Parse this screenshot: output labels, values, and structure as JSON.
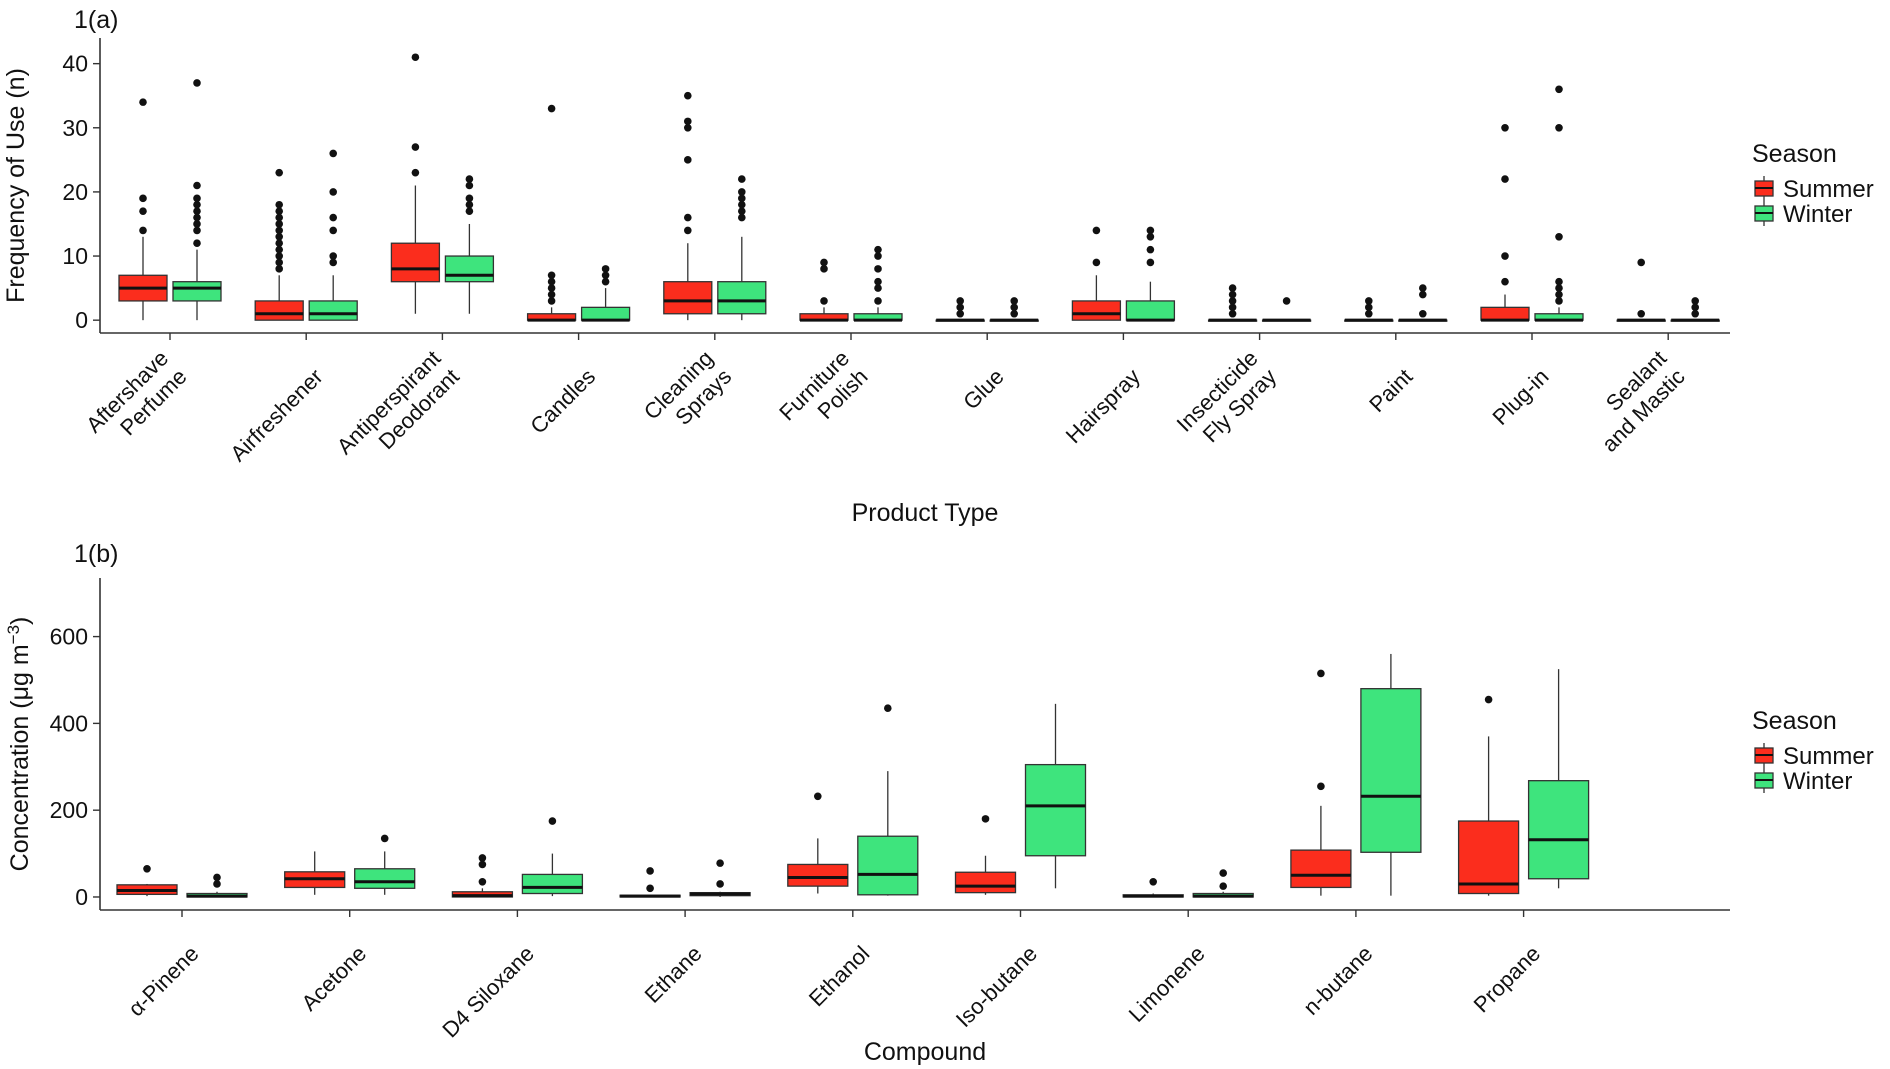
{
  "colors": {
    "summer": "#fb2d1d",
    "winter": "#3ee47d"
  },
  "chart_data": [
    {
      "type": "boxplot",
      "panel_label": "1(a)",
      "xlabel": "Product Type",
      "ylabel": "Frequency of Use (n)",
      "ylim": [
        -2,
        44
      ],
      "yticks": [
        0,
        10,
        20,
        30,
        40
      ],
      "legend": {
        "title": "Season",
        "entries": [
          "Summer",
          "Winter"
        ],
        "position": "right"
      },
      "categories": [
        {
          "lines": [
            "Aftershave",
            "Perfume"
          ]
        },
        {
          "lines": [
            "Airfreshener"
          ]
        },
        {
          "lines": [
            "Antiperspirant",
            "Deodorant"
          ]
        },
        {
          "lines": [
            "Candles"
          ]
        },
        {
          "lines": [
            "Cleaning",
            "Sprays"
          ]
        },
        {
          "lines": [
            "Furniture",
            "Polish"
          ]
        },
        {
          "lines": [
            "Glue"
          ]
        },
        {
          "lines": [
            "Hairspray"
          ]
        },
        {
          "lines": [
            "Insecticide",
            "Fly Spray"
          ]
        },
        {
          "lines": [
            "Paint"
          ]
        },
        {
          "lines": [
            "Plug-in"
          ]
        },
        {
          "lines": [
            "Sealant",
            "and Mastic"
          ]
        }
      ],
      "series": [
        {
          "name": "Summer",
          "boxes": [
            {
              "lo": 0,
              "q1": 3,
              "med": 5,
              "q3": 7,
              "hi": 13,
              "out": [
                14,
                17,
                19,
                34
              ]
            },
            {
              "lo": 0,
              "q1": 0,
              "med": 1,
              "q3": 3,
              "hi": 7,
              "out": [
                8,
                9,
                10,
                11,
                12,
                13,
                14,
                15,
                16,
                17,
                18,
                23
              ]
            },
            {
              "lo": 1,
              "q1": 6,
              "med": 8,
              "q3": 12,
              "hi": 21,
              "out": [
                23,
                27,
                41
              ]
            },
            {
              "lo": 0,
              "q1": 0,
              "med": 0,
              "q3": 1,
              "hi": 2,
              "out": [
                3,
                4,
                5,
                6,
                7,
                33
              ]
            },
            {
              "lo": 0,
              "q1": 1,
              "med": 3,
              "q3": 6,
              "hi": 12,
              "out": [
                14,
                16,
                25,
                30,
                31,
                35
              ]
            },
            {
              "lo": 0,
              "q1": 0,
              "med": 0,
              "q3": 1,
              "hi": 2,
              "out": [
                3,
                8,
                9
              ]
            },
            {
              "lo": 0,
              "q1": 0,
              "med": 0,
              "q3": 0,
              "hi": 0,
              "out": [
                1,
                2,
                3
              ]
            },
            {
              "lo": 0,
              "q1": 0,
              "med": 1,
              "q3": 3,
              "hi": 7,
              "out": [
                9,
                14
              ]
            },
            {
              "lo": 0,
              "q1": 0,
              "med": 0,
              "q3": 0,
              "hi": 0,
              "out": [
                1,
                2,
                3,
                4,
                5
              ]
            },
            {
              "lo": 0,
              "q1": 0,
              "med": 0,
              "q3": 0,
              "hi": 0,
              "out": [
                1,
                2,
                3
              ]
            },
            {
              "lo": 0,
              "q1": 0,
              "med": 0,
              "q3": 2,
              "hi": 4,
              "out": [
                6,
                10,
                22,
                30
              ]
            },
            {
              "lo": 0,
              "q1": 0,
              "med": 0,
              "q3": 0,
              "hi": 0,
              "out": [
                1,
                9
              ]
            }
          ]
        },
        {
          "name": "Winter",
          "boxes": [
            {
              "lo": 0,
              "q1": 3,
              "med": 5,
              "q3": 6,
              "hi": 11,
              "out": [
                12,
                14,
                15,
                16,
                17,
                18,
                19,
                21,
                37
              ]
            },
            {
              "lo": 0,
              "q1": 0,
              "med": 1,
              "q3": 3,
              "hi": 7,
              "out": [
                9,
                10,
                14,
                16,
                20,
                26
              ]
            },
            {
              "lo": 1,
              "q1": 6,
              "med": 7,
              "q3": 10,
              "hi": 15,
              "out": [
                17,
                18,
                19,
                21,
                22
              ]
            },
            {
              "lo": 0,
              "q1": 0,
              "med": 0,
              "q3": 2,
              "hi": 5,
              "out": [
                6,
                7,
                8
              ]
            },
            {
              "lo": 0,
              "q1": 1,
              "med": 3,
              "q3": 6,
              "hi": 13,
              "out": [
                16,
                17,
                18,
                19,
                20,
                22
              ]
            },
            {
              "lo": 0,
              "q1": 0,
              "med": 0,
              "q3": 1,
              "hi": 2,
              "out": [
                3,
                5,
                6,
                8,
                10,
                11
              ]
            },
            {
              "lo": 0,
              "q1": 0,
              "med": 0,
              "q3": 0,
              "hi": 0,
              "out": [
                1,
                2,
                3
              ]
            },
            {
              "lo": 0,
              "q1": 0,
              "med": 0,
              "q3": 3,
              "hi": 6,
              "out": [
                9,
                11,
                13,
                14
              ]
            },
            {
              "lo": 0,
              "q1": 0,
              "med": 0,
              "q3": 0,
              "hi": 0,
              "out": [
                3
              ]
            },
            {
              "lo": 0,
              "q1": 0,
              "med": 0,
              "q3": 0,
              "hi": 0,
              "out": [
                1,
                4,
                5
              ]
            },
            {
              "lo": 0,
              "q1": 0,
              "med": 0,
              "q3": 1,
              "hi": 2,
              "out": [
                3,
                4,
                5,
                6,
                13,
                30,
                36
              ]
            },
            {
              "lo": 0,
              "q1": 0,
              "med": 0,
              "q3": 0,
              "hi": 0,
              "out": [
                1,
                2,
                3
              ]
            }
          ]
        }
      ]
    },
    {
      "type": "boxplot",
      "panel_label": "1(b)",
      "xlabel": "Compound",
      "ylabel_main": "Concentration (μg m",
      "ylabel_sup": "−3",
      "ylabel_close": ")",
      "ylim": [
        -30,
        735
      ],
      "yticks": [
        0,
        200,
        400,
        600
      ],
      "legend": {
        "title": "Season",
        "entries": [
          "Summer",
          "Winter"
        ],
        "position": "right"
      },
      "categories": [
        {
          "lines": [
            "α-Pinene"
          ]
        },
        {
          "lines": [
            "Acetone"
          ]
        },
        {
          "lines": [
            "D4 Siloxane"
          ]
        },
        {
          "lines": [
            "Ethane"
          ]
        },
        {
          "lines": [
            "Ethanol"
          ]
        },
        {
          "lines": [
            "Iso-butane"
          ]
        },
        {
          "lines": [
            "Limonene"
          ]
        },
        {
          "lines": [
            "n-butane"
          ]
        },
        {
          "lines": [
            "Propane"
          ]
        }
      ],
      "series": [
        {
          "name": "Summer",
          "boxes": [
            {
              "lo": 2,
              "q1": 6,
              "med": 15,
              "q3": 28,
              "hi": 30,
              "out": [
                65
              ]
            },
            {
              "lo": 5,
              "q1": 22,
              "med": 42,
              "q3": 58,
              "hi": 105,
              "out": []
            },
            {
              "lo": 0,
              "q1": 0,
              "med": 3,
              "q3": 12,
              "hi": 20,
              "out": [
                35,
                75,
                90
              ]
            },
            {
              "lo": 0,
              "q1": 0,
              "med": 2,
              "q3": 4,
              "hi": 5,
              "out": [
                20,
                60
              ]
            },
            {
              "lo": 8,
              "q1": 25,
              "med": 45,
              "q3": 75,
              "hi": 135,
              "out": [
                232
              ]
            },
            {
              "lo": 5,
              "q1": 10,
              "med": 25,
              "q3": 57,
              "hi": 95,
              "out": [
                180
              ]
            },
            {
              "lo": 0,
              "q1": 0,
              "med": 2,
              "q3": 5,
              "hi": 8,
              "out": [
                35
              ]
            },
            {
              "lo": 3,
              "q1": 22,
              "med": 50,
              "q3": 108,
              "hi": 210,
              "out": [
                255,
                515
              ]
            },
            {
              "lo": 3,
              "q1": 8,
              "med": 30,
              "q3": 175,
              "hi": 370,
              "out": [
                455
              ]
            }
          ]
        },
        {
          "name": "Winter",
          "boxes": [
            {
              "lo": 0,
              "q1": 0,
              "med": 2,
              "q3": 8,
              "hi": 12,
              "out": [
                30,
                45
              ]
            },
            {
              "lo": 5,
              "q1": 20,
              "med": 35,
              "q3": 65,
              "hi": 105,
              "out": [
                135
              ]
            },
            {
              "lo": 2,
              "q1": 8,
              "med": 22,
              "q3": 52,
              "hi": 100,
              "out": [
                175
              ]
            },
            {
              "lo": 0,
              "q1": 3,
              "med": 7,
              "q3": 10,
              "hi": 12,
              "out": [
                30,
                78
              ]
            },
            {
              "lo": 3,
              "q1": 5,
              "med": 52,
              "q3": 140,
              "hi": 290,
              "out": [
                435
              ]
            },
            {
              "lo": 20,
              "q1": 95,
              "med": 210,
              "q3": 305,
              "hi": 445,
              "out": []
            },
            {
              "lo": 0,
              "q1": 0,
              "med": 2,
              "q3": 8,
              "hi": 12,
              "out": [
                25,
                55
              ]
            },
            {
              "lo": 3,
              "q1": 103,
              "med": 232,
              "q3": 480,
              "hi": 560,
              "out": []
            },
            {
              "lo": 20,
              "q1": 42,
              "med": 132,
              "q3": 268,
              "hi": 525,
              "out": []
            }
          ]
        }
      ]
    }
  ]
}
